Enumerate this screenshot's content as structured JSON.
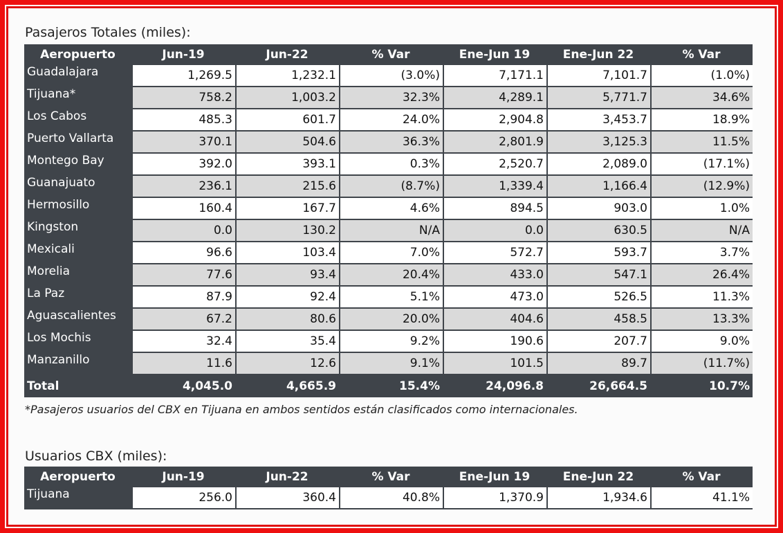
{
  "table1": {
    "title": "Pasajeros Totales (miles):",
    "headers": [
      "Aeropuerto",
      "Jun-19",
      "Jun-22",
      "% Var",
      "Ene-Jun 19",
      "Ene-Jun 22",
      "% Var"
    ],
    "rows": [
      [
        "Guadalajara",
        "1,269.5",
        "1,232.1",
        "(3.0%)",
        "7,171.1",
        "7,101.7",
        "(1.0%)"
      ],
      [
        "Tijuana*",
        "758.2",
        "1,003.2",
        "32.3%",
        "4,289.1",
        "5,771.7",
        "34.6%"
      ],
      [
        "Los Cabos",
        "485.3",
        "601.7",
        "24.0%",
        "2,904.8",
        "3,453.7",
        "18.9%"
      ],
      [
        "Puerto Vallarta",
        "370.1",
        "504.6",
        "36.3%",
        "2,801.9",
        "3,125.3",
        "11.5%"
      ],
      [
        "Montego Bay",
        "392.0",
        "393.1",
        "0.3%",
        "2,520.7",
        "2,089.0",
        "(17.1%)"
      ],
      [
        "Guanajuato",
        "236.1",
        "215.6",
        "(8.7%)",
        "1,339.4",
        "1,166.4",
        "(12.9%)"
      ],
      [
        "Hermosillo",
        "160.4",
        "167.7",
        "4.6%",
        "894.5",
        "903.0",
        "1.0%"
      ],
      [
        "Kingston",
        "0.0",
        "130.2",
        "N/A",
        "0.0",
        "630.5",
        "N/A"
      ],
      [
        "Mexicali",
        "96.6",
        "103.4",
        "7.0%",
        "572.7",
        "593.7",
        "3.7%"
      ],
      [
        "Morelia",
        "77.6",
        "93.4",
        "20.4%",
        "433.0",
        "547.1",
        "26.4%"
      ],
      [
        "La Paz",
        "87.9",
        "92.4",
        "5.1%",
        "473.0",
        "526.5",
        "11.3%"
      ],
      [
        "Aguascalientes",
        "67.2",
        "80.6",
        "20.0%",
        "404.6",
        "458.5",
        "13.3%"
      ],
      [
        "Los Mochis",
        "32.4",
        "35.4",
        "9.2%",
        "190.6",
        "207.7",
        "9.0%"
      ],
      [
        "Manzanillo",
        "11.6",
        "12.6",
        "9.1%",
        "101.5",
        "89.7",
        "(11.7%)"
      ]
    ],
    "total": [
      "Total",
      "4,045.0",
      "4,665.9",
      "15.4%",
      "24,096.8",
      "26,664.5",
      "10.7%"
    ]
  },
  "footnote": "*Pasajeros usuarios del CBX en Tijuana en ambos sentidos están clasificados como internacionales.",
  "table2": {
    "title": "Usuarios CBX (miles):",
    "headers": [
      "Aeropuerto",
      "Jun-19",
      "Jun-22",
      "% Var",
      "Ene-Jun 19",
      "Ene-Jun 22",
      "% Var"
    ],
    "rows": [
      [
        "Tijuana",
        "256.0",
        "360.4",
        "40.8%",
        "1,370.9",
        "1,934.6",
        "41.1%"
      ]
    ]
  },
  "colors": {
    "frame": "#ee1010",
    "header_bg": "#3f444a",
    "row_alt_bg": "#dadada"
  }
}
